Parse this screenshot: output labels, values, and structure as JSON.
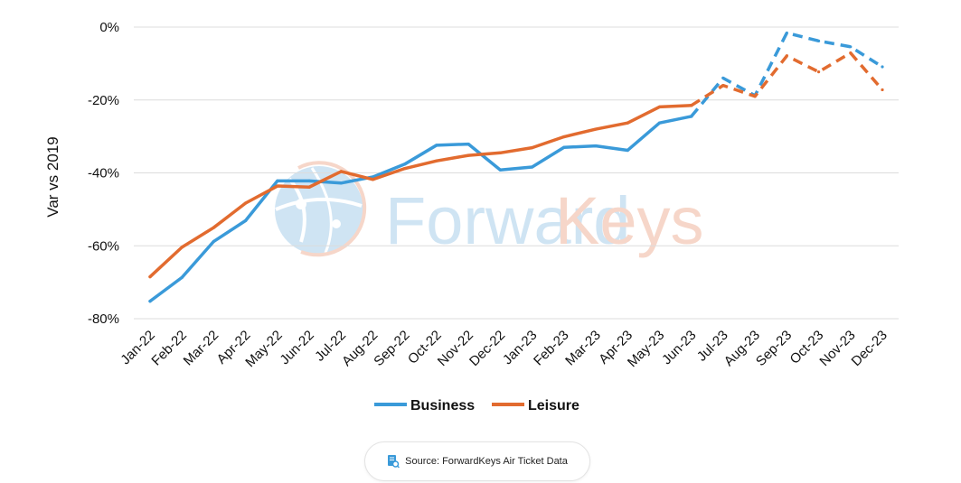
{
  "chart_data": {
    "type": "line",
    "ylabel": "Var vs 2019",
    "xlabel": "",
    "y_unit": "%",
    "ylim": [
      -80,
      0
    ],
    "y_ticks": [
      {
        "value": 0,
        "label": "0%"
      },
      {
        "value": -20,
        "label": "-20%"
      },
      {
        "value": -40,
        "label": "-40%"
      },
      {
        "value": -60,
        "label": "-60%"
      },
      {
        "value": -80,
        "label": "-80%"
      }
    ],
    "grid": true,
    "legend_position": "bottom",
    "categories": [
      "Jan-22",
      "Feb-22",
      "Mar-22",
      "Apr-22",
      "May-22",
      "Jun-22",
      "Jul-22",
      "Aug-22",
      "Sep-22",
      "Oct-22",
      "Nov-22",
      "Dec-22",
      "Jan-23",
      "Feb-23",
      "Mar-23",
      "Apr-23",
      "May-23",
      "Jun-23",
      "Jul-23",
      "Aug-23",
      "Sep-23",
      "Oct-23",
      "Nov-23",
      "Dec-23"
    ],
    "dashed_from_category": "Jun-23",
    "series": [
      {
        "name": "Business",
        "color": "#3a9ad9",
        "values": [
          -75.2,
          -68.7,
          -58.8,
          -53.1,
          -42.2,
          -42.2,
          -42.8,
          -41.1,
          -37.6,
          -32.4,
          -32.1,
          -39.2,
          -38.4,
          -33.0,
          -32.6,
          -33.8,
          -26.3,
          -24.5,
          -14.0,
          -18.8,
          -1.6,
          -3.8,
          -5.4,
          -10.9
        ]
      },
      {
        "name": "Leisure",
        "color": "#e26b2f",
        "values": [
          -68.5,
          -60.4,
          -55.0,
          -48.3,
          -43.6,
          -43.9,
          -39.6,
          -41.8,
          -38.8,
          -36.7,
          -35.2,
          -34.5,
          -33.1,
          -30.1,
          -28.0,
          -26.3,
          -21.9,
          -21.5,
          -16.0,
          -19.0,
          -7.9,
          -12.3,
          -7.1,
          -17.2
        ]
      }
    ]
  },
  "watermark": {
    "text_a": "Forward",
    "text_b": "Keys"
  },
  "source": {
    "text": "Source: ForwardKeys Air Ticket Data",
    "icon": "document-search-icon"
  }
}
